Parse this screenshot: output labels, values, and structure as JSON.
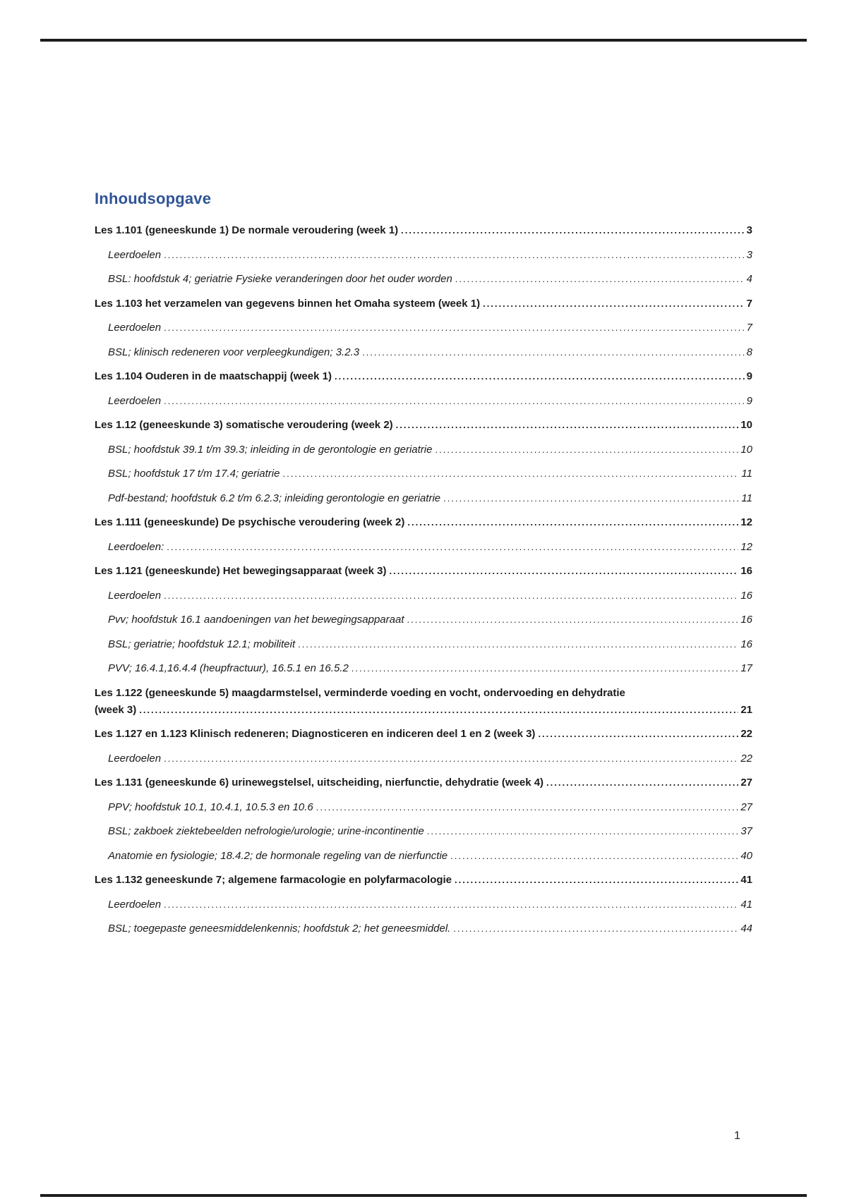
{
  "page": {
    "title": "Inhoudsopgave",
    "title_color": "#2F5496",
    "footer_page_number": "1"
  },
  "toc": {
    "entries": [
      {
        "level": "main",
        "label": "Les 1.101 (geneeskunde 1) De normale veroudering (week 1)",
        "page": "3"
      },
      {
        "level": "sub",
        "label": "Leerdoelen",
        "page": "3"
      },
      {
        "level": "sub",
        "label": "BSL: hoofdstuk 4; geriatrie Fysieke veranderingen door het ouder worden",
        "page": "4"
      },
      {
        "level": "main",
        "label": "Les 1.103 het verzamelen van gegevens binnen het Omaha systeem (week 1)",
        "page": "7"
      },
      {
        "level": "sub",
        "label": "Leerdoelen",
        "page": "7"
      },
      {
        "level": "sub",
        "label": "BSL; klinisch redeneren voor verpleegkundigen; 3.2.3",
        "page": "8"
      },
      {
        "level": "main",
        "label": "Les 1.104 Ouderen in de maatschappij (week 1)",
        "page": "9"
      },
      {
        "level": "sub",
        "label": "Leerdoelen",
        "page": "9"
      },
      {
        "level": "main",
        "label": "Les 1.12 (geneeskunde 3) somatische veroudering (week 2)",
        "page": "10"
      },
      {
        "level": "sub",
        "label": "BSL; hoofdstuk 39.1 t/m 39.3; inleiding in de gerontologie en geriatrie",
        "page": "10"
      },
      {
        "level": "sub",
        "label": "BSL; hoofdstuk 17 t/m 17.4; geriatrie",
        "page": "11"
      },
      {
        "level": "sub",
        "label": "Pdf-bestand; hoofdstuk 6.2 t/m 6.2.3; inleiding gerontologie en geriatrie",
        "page": "11"
      },
      {
        "level": "main",
        "label": "Les 1.111 (geneeskunde) De psychische veroudering (week 2)",
        "page": "12"
      },
      {
        "level": "sub",
        "label": "Leerdoelen:",
        "page": "12"
      },
      {
        "level": "main",
        "label": "Les 1.121 (geneeskunde) Het bewegingsapparaat (week 3)",
        "page": "16"
      },
      {
        "level": "sub",
        "label": "Leerdoelen",
        "page": "16"
      },
      {
        "level": "sub",
        "label": "Pvv; hoofdstuk 16.1 aandoeningen van het bewegingsapparaat",
        "page": "16"
      },
      {
        "level": "sub",
        "label": "BSL; geriatrie; hoofdstuk 12.1; mobiliteit",
        "page": "16"
      },
      {
        "level": "sub",
        "label": "PVV; 16.4.1,16.4.4 (heupfractuur), 16.5.1 en 16.5.2",
        "page": "17"
      },
      {
        "level": "main",
        "label": "Les 1.122 (geneeskunde 5) maagdarmstelsel, verminderde voeding en vocht, ondervoeding en dehydratie",
        "label2": "(week 3)",
        "page": "21"
      },
      {
        "level": "main",
        "label": "Les 1.127 en 1.123 Klinisch redeneren; Diagnosticeren en indiceren deel 1 en 2 (week 3)",
        "page": "22"
      },
      {
        "level": "sub",
        "label": "Leerdoelen",
        "page": "22"
      },
      {
        "level": "main",
        "label": "Les 1.131 (geneeskunde 6) urinewegstelsel, uitscheiding, nierfunctie, dehydratie (week 4)",
        "page": "27"
      },
      {
        "level": "sub",
        "label": "PPV; hoofdstuk 10.1, 10.4.1, 10.5.3 en 10.6",
        "page": "27"
      },
      {
        "level": "sub",
        "label": "BSL; zakboek ziektebeelden nefrologie/urologie; urine-incontinentie",
        "page": "37"
      },
      {
        "level": "sub",
        "label": "Anatomie en fysiologie; 18.4.2; de hormonale regeling van de nierfunctie",
        "page": "40"
      },
      {
        "level": "main",
        "label": "Les 1.132 geneeskunde 7; algemene farmacologie en polyfarmacologie",
        "page": "41"
      },
      {
        "level": "sub",
        "label": "Leerdoelen",
        "page": "41"
      },
      {
        "level": "sub",
        "label": "BSL; toegepaste geneesmiddelenkennis; hoofdstuk 2; het geneesmiddel.",
        "page": "44"
      }
    ]
  }
}
